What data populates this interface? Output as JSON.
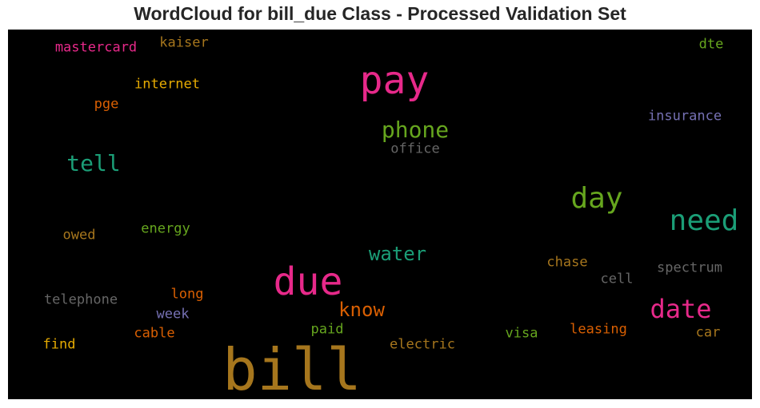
{
  "title": "WordCloud for bill_due Class - Processed Validation Set",
  "chart_data": {
    "type": "wordcloud",
    "background": "#000000",
    "words": [
      {
        "text": "bill",
        "color": "#a6761d"
      },
      {
        "text": "pay",
        "color": "#e7298a"
      },
      {
        "text": "due",
        "color": "#e7298a"
      },
      {
        "text": "need",
        "color": "#1b9e77"
      },
      {
        "text": "day",
        "color": "#66a61e"
      },
      {
        "text": "date",
        "color": "#e7298a"
      },
      {
        "text": "phone",
        "color": "#66a61e"
      },
      {
        "text": "tell",
        "color": "#1b9e77"
      },
      {
        "text": "water",
        "color": "#1b9e77"
      },
      {
        "text": "know",
        "color": "#d95f02"
      },
      {
        "text": "insurance",
        "color": "#7570b3"
      },
      {
        "text": "mastercard",
        "color": "#e7298a"
      },
      {
        "text": "kaiser",
        "color": "#a6761d"
      },
      {
        "text": "dte",
        "color": "#66a61e"
      },
      {
        "text": "internet",
        "color": "#e6ab02"
      },
      {
        "text": "pge",
        "color": "#d95f02"
      },
      {
        "text": "office",
        "color": "#666666"
      },
      {
        "text": "energy",
        "color": "#66a61e"
      },
      {
        "text": "owed",
        "color": "#a6761d"
      },
      {
        "text": "chase",
        "color": "#a6761d"
      },
      {
        "text": "spectrum",
        "color": "#666666"
      },
      {
        "text": "cell",
        "color": "#666666"
      },
      {
        "text": "long",
        "color": "#d95f02"
      },
      {
        "text": "telephone",
        "color": "#666666"
      },
      {
        "text": "week",
        "color": "#7570b3"
      },
      {
        "text": "paid",
        "color": "#66a61e"
      },
      {
        "text": "leasing",
        "color": "#d95f02"
      },
      {
        "text": "car",
        "color": "#a6761d"
      },
      {
        "text": "visa",
        "color": "#66a61e"
      },
      {
        "text": "cable",
        "color": "#d95f02"
      },
      {
        "text": "find",
        "color": "#e6ab02"
      },
      {
        "text": "electric",
        "color": "#a6761d"
      }
    ]
  }
}
